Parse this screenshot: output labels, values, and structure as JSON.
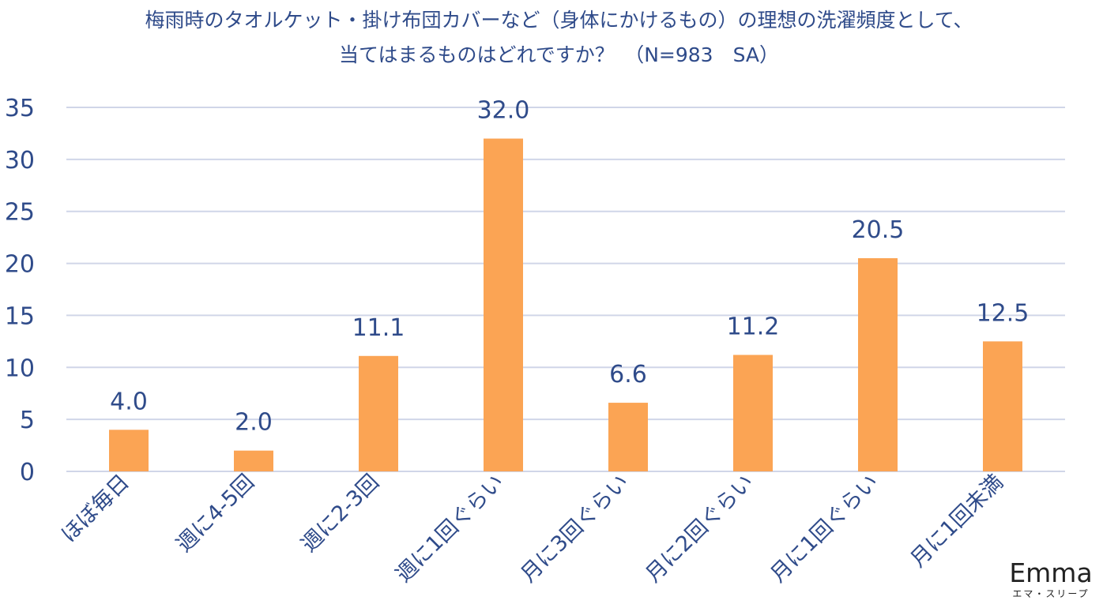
{
  "chart_data": {
    "type": "bar",
    "title_lines": [
      "梅雨時のタオルケット・掛け布団カバーなど（身体にかけるもの）の理想の洗濯頻度として、",
      "当てはまるものはどれですか？　（N=983　SA）"
    ],
    "categories": [
      "ほぼ毎日",
      "週に4-5回",
      "週に2-3回",
      "週に1回ぐらい",
      "月に3回ぐらい",
      "月に2回ぐらい",
      "月に1回ぐらい",
      "月に1回未満"
    ],
    "values": [
      4.0,
      2.0,
      11.1,
      32.0,
      6.6,
      11.2,
      20.5,
      12.5
    ],
    "value_labels": [
      "4.0",
      "2.0",
      "11.1",
      "32.0",
      "6.6",
      "11.2",
      "20.5",
      "12.5"
    ],
    "yticks": [
      "0",
      "5",
      "10",
      "15",
      "20",
      "25",
      "30",
      "35"
    ],
    "ylim": [
      0,
      35
    ],
    "grid": true,
    "legend": "none",
    "colors": {
      "bar": "#FBA454",
      "text": "#2f4b8a",
      "grid": "#d0d6e8"
    }
  },
  "logo": {
    "wordmark": "Emma",
    "subtitle": "エマ・スリープ"
  }
}
